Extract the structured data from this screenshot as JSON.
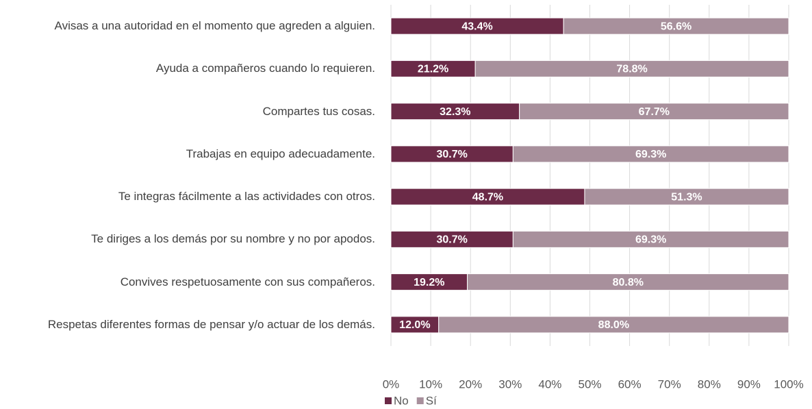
{
  "chart_data": {
    "type": "stacked_barh",
    "categories": [
      "Avisas a una autoridad en el momento que agreden a alguien.",
      "Ayuda a compañeros cuando lo requieren.",
      "Compartes tus cosas.",
      "Trabajas en equipo adecuadamente.",
      "Te integras fácilmente a las actividades con otros.",
      "Te diriges a los demás por su nombre y no por apodos.",
      "Convives respetuosamente con sus compañeros.",
      "Respetas diferentes formas de pensar y/o actuar de los demás."
    ],
    "series": [
      {
        "name": "No",
        "color": "#6b2a47",
        "values": [
          43.4,
          21.2,
          32.3,
          30.7,
          48.7,
          30.7,
          19.2,
          12.0
        ],
        "value_labels": [
          "43.4%",
          "21.2%",
          "32.3%",
          "30.7%",
          "48.7%",
          "30.7%",
          "19.2%",
          "12.0%"
        ]
      },
      {
        "name": "Sí",
        "color": "#a8909c",
        "values": [
          56.6,
          78.8,
          67.7,
          69.3,
          51.3,
          69.3,
          80.8,
          88.0
        ],
        "value_labels": [
          "56.6%",
          "78.8%",
          "67.7%",
          "69.3%",
          "51.3%",
          "69.3%",
          "80.8%",
          "88.0%"
        ]
      }
    ],
    "xlim": [
      0,
      100
    ],
    "xticks": [
      {
        "value": 0,
        "label": "0%"
      },
      {
        "value": 10,
        "label": "10%"
      },
      {
        "value": 20,
        "label": "20%"
      },
      {
        "value": 30,
        "label": "30%"
      },
      {
        "value": 40,
        "label": "40%"
      },
      {
        "value": 50,
        "label": "50%"
      },
      {
        "value": 60,
        "label": "60%"
      },
      {
        "value": 70,
        "label": "70%"
      },
      {
        "value": 80,
        "label": "80%"
      },
      {
        "value": 90,
        "label": "90%"
      },
      {
        "value": 100,
        "label": "100%"
      }
    ],
    "grid": true,
    "legend": "bottom"
  }
}
